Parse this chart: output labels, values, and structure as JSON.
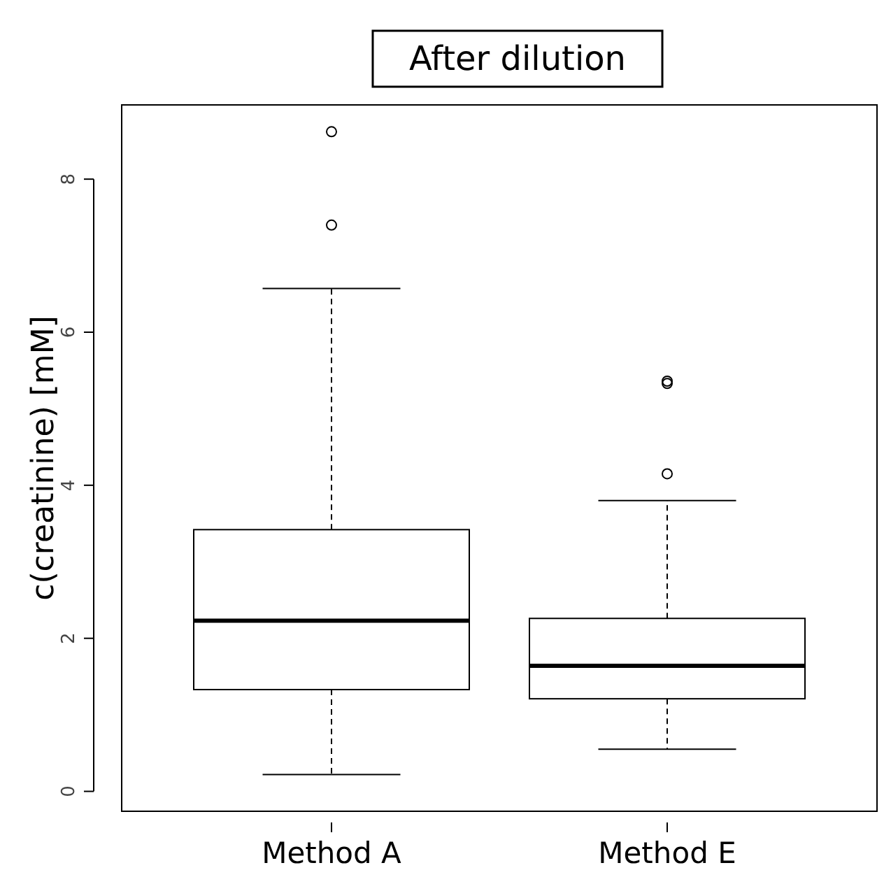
{
  "chart_data": {
    "type": "box",
    "title": "After dilution",
    "ylabel": "c(creatinine) [mM]",
    "categories": [
      "Method A",
      "Method E"
    ],
    "boxes": [
      {
        "low": 0.22,
        "q1": 1.33,
        "median": 2.23,
        "q3": 3.42,
        "high": 6.57,
        "outliers": [
          7.4,
          8.62
        ]
      },
      {
        "low": 0.55,
        "q1": 1.21,
        "median": 1.64,
        "q3": 2.26,
        "high": 3.8,
        "outliers": [
          4.15,
          5.33,
          5.36
        ]
      }
    ],
    "ylim": [
      -0.26,
      8.97
    ],
    "yticks": [
      0,
      2,
      4,
      6,
      8
    ],
    "grid": false
  }
}
